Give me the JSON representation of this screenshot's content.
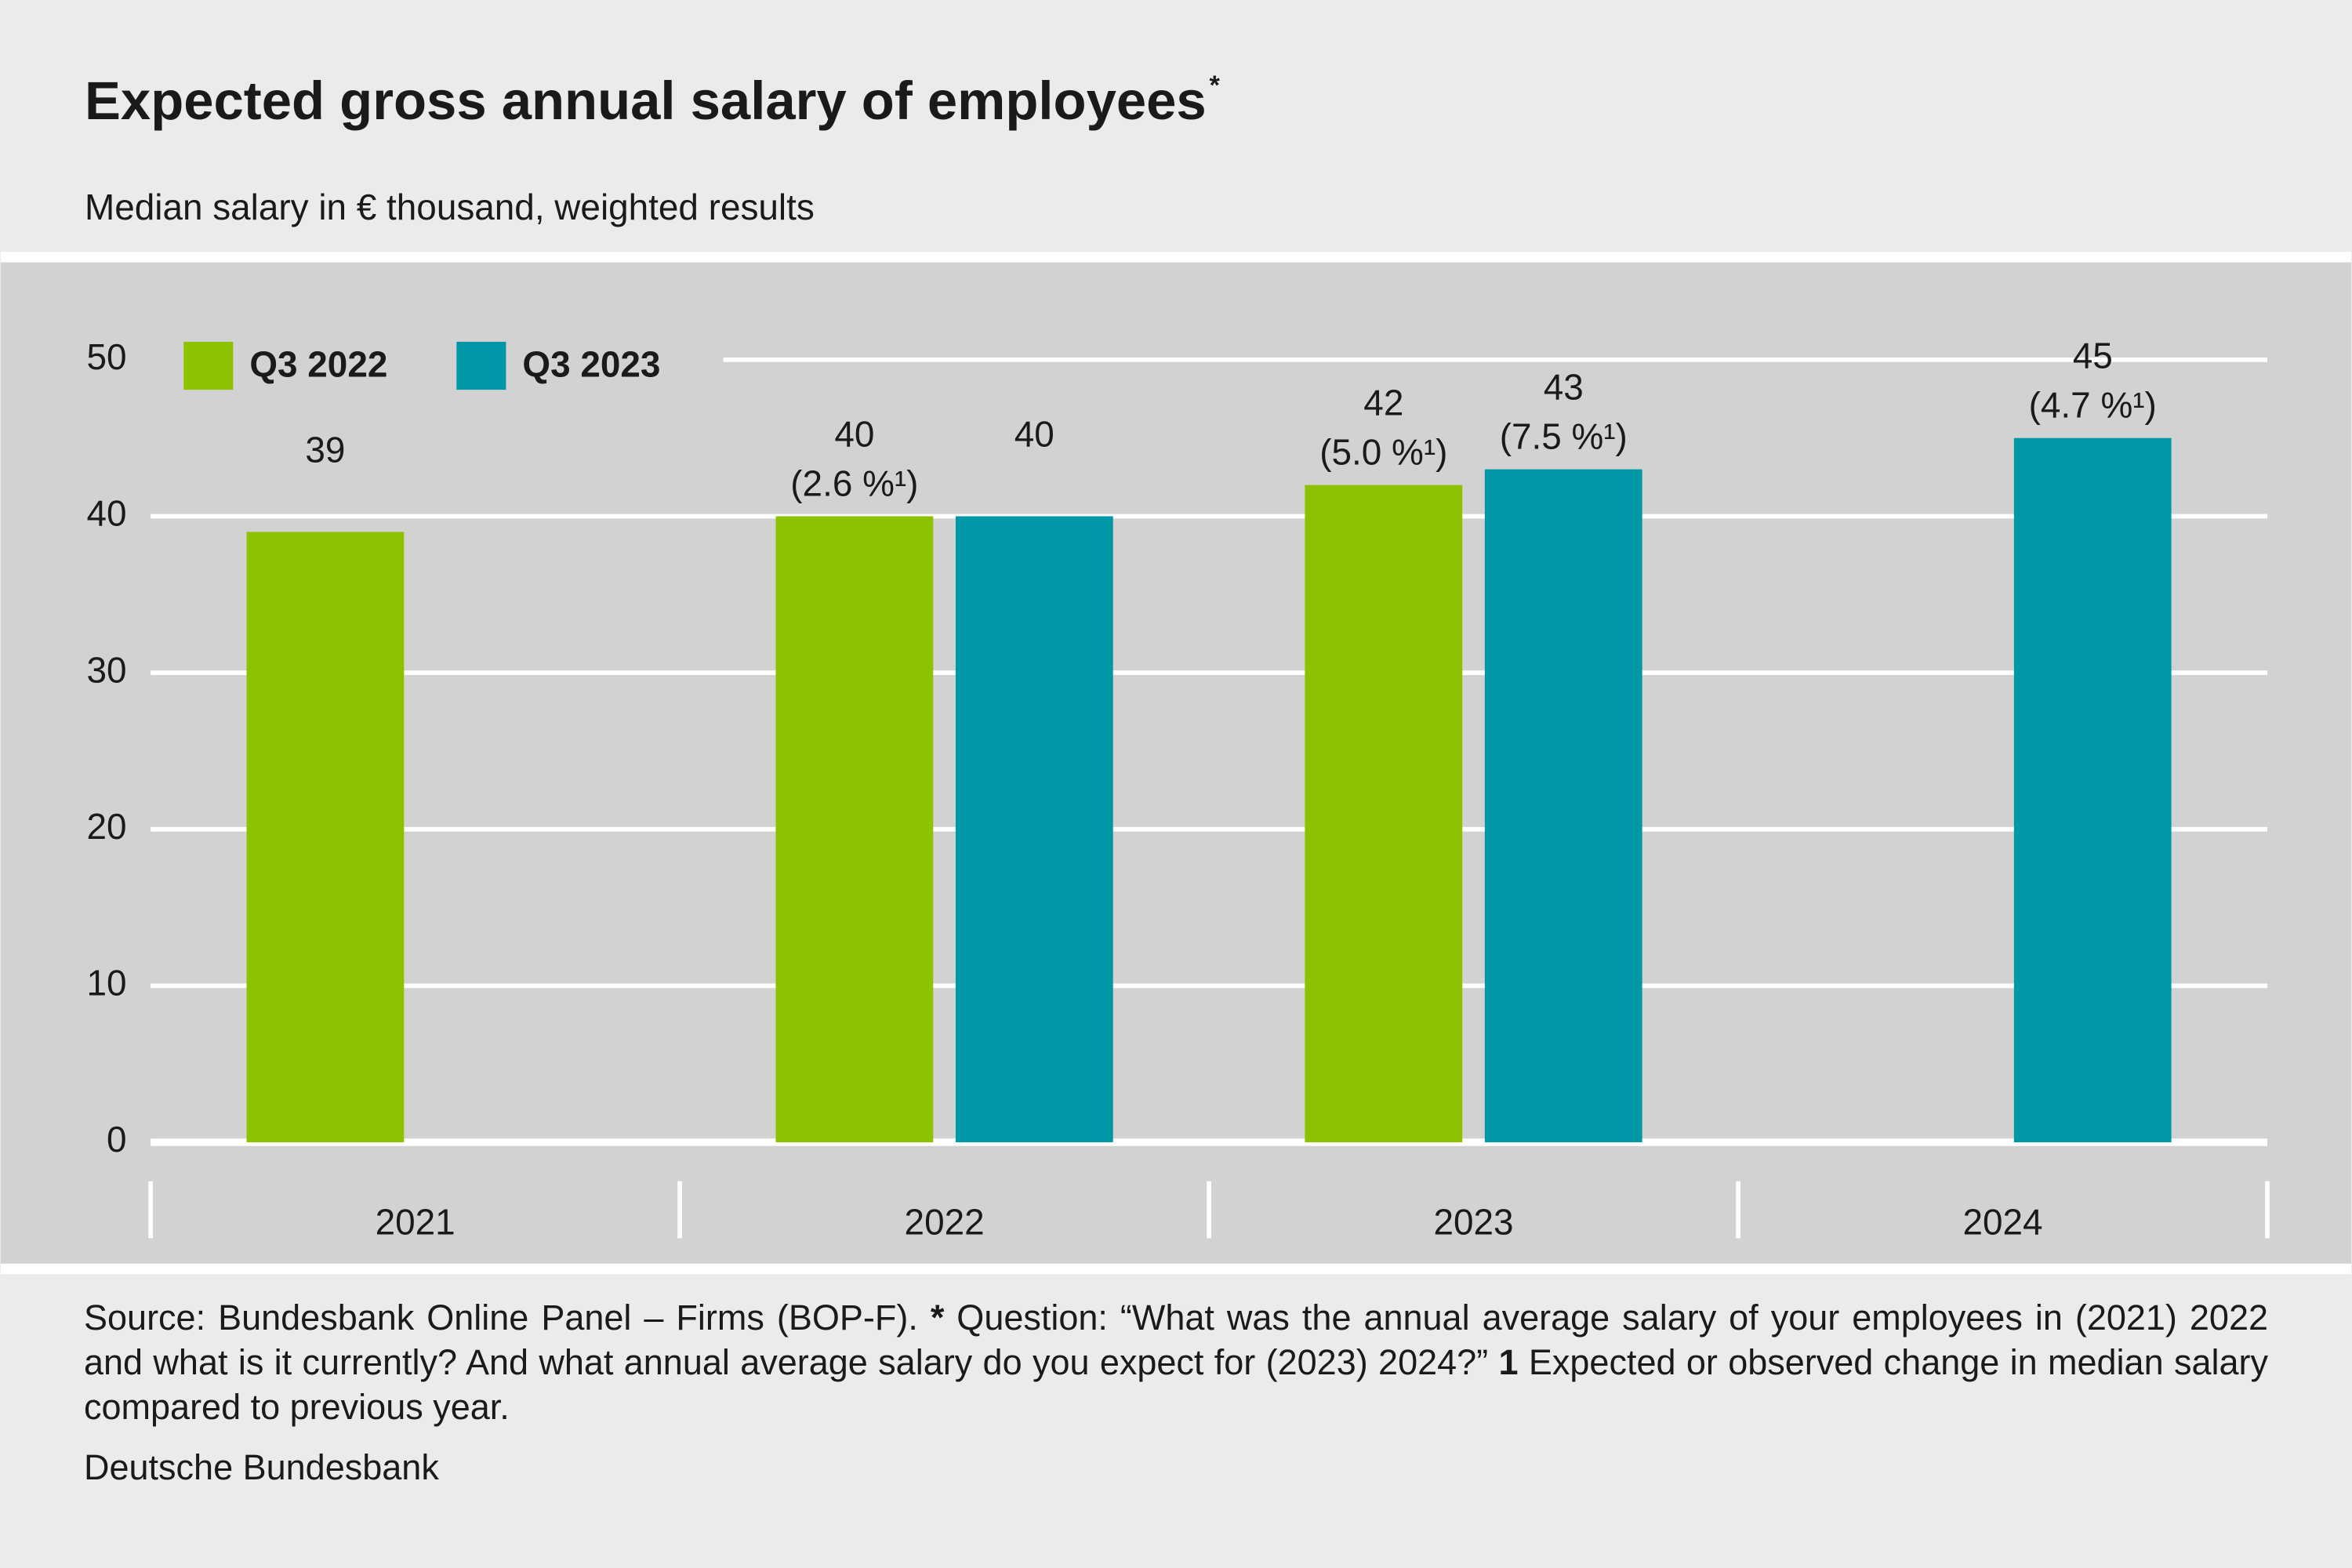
{
  "chart_data": {
    "type": "bar",
    "title": "Expected gross annual salary of employees",
    "title_mark": "*",
    "subtitle": "Median salary in € thousand, weighted results",
    "categories": [
      "2021",
      "2022",
      "2023",
      "2024"
    ],
    "series": [
      {
        "name": "Q3 2022",
        "color": "#8dc200",
        "values": [
          39,
          40,
          42,
          null
        ],
        "annotations": [
          null,
          "(2.6 %¹)",
          "(5.0 %¹)",
          null
        ]
      },
      {
        "name": "Q3 2023",
        "color": "#0097a7",
        "values": [
          null,
          40,
          43,
          45
        ],
        "annotations": [
          null,
          null,
          "(7.5 %¹)",
          "(4.7 %¹)"
        ]
      }
    ],
    "ylim": [
      0,
      50
    ],
    "yticks": [
      0,
      10,
      20,
      30,
      40,
      50
    ],
    "grid": true,
    "legend": "top-left",
    "footnote": [
      "Source: Bundesbank Online Panel – Firms (BOP-F). ",
      "*",
      " Question: “What was the annual average salary of your employees in (2021) 2022 and what is it currently? And what annual average salary do you expect for (2023) 2024?” ",
      "1",
      " Expected or observed change in median salary compared to previous year."
    ],
    "credit": "Deutsche Bundesbank"
  }
}
